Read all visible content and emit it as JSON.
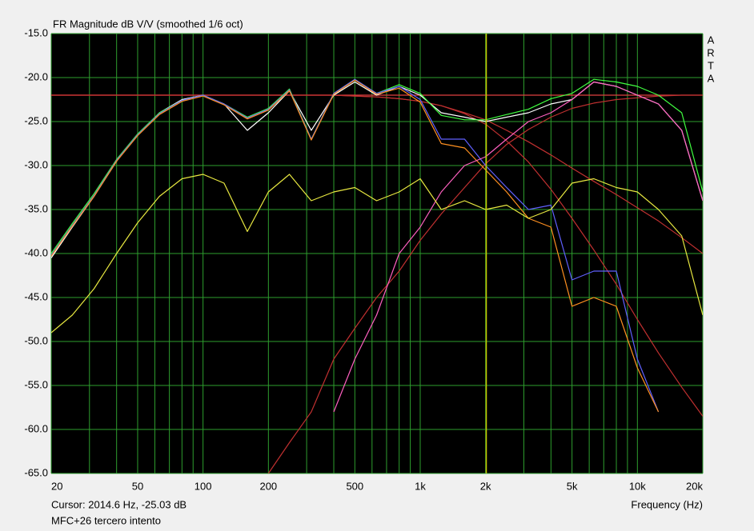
{
  "chart_data": {
    "type": "line",
    "title": "FR Magnitude dB V/V (smoothed 1/6 oct)",
    "side_label": [
      "A",
      "R",
      "T",
      "A"
    ],
    "cursor_text": "Cursor: 2014.6 Hz, -25.03 dB",
    "cursor_x": 2014.6,
    "cursor_color": "#c8c800",
    "x_label": "Frequency (Hz)",
    "footer": "MFC+26 tercero intento",
    "x_scale": "log",
    "grid": true,
    "xlim": [
      20,
      20000
    ],
    "ylim": [
      -65,
      -15
    ],
    "xticks": [
      20,
      50,
      100,
      200,
      500,
      {
        "value": 1000,
        "label": "1k"
      },
      {
        "value": 2000,
        "label": "2k"
      },
      {
        "value": 5000,
        "label": "5k"
      },
      {
        "value": 10000,
        "label": "10k"
      },
      {
        "value": 20000,
        "label": "20k"
      }
    ],
    "xminor": [
      30,
      40,
      60,
      70,
      80,
      90,
      300,
      400,
      600,
      700,
      800,
      900,
      3000,
      4000,
      6000,
      7000,
      8000,
      9000
    ],
    "yticks": [
      {
        "value": -15,
        "label": "-15.0"
      },
      {
        "value": -20,
        "label": "-20.0"
      },
      {
        "value": -25,
        "label": "-25.0"
      },
      {
        "value": -30,
        "label": "-30.0"
      },
      {
        "value": -35,
        "label": "-35.0"
      },
      {
        "value": -40,
        "label": "-40.0"
      },
      {
        "value": -45,
        "label": "-45.0"
      },
      {
        "value": -50,
        "label": "-50.0"
      },
      {
        "value": -55,
        "label": "-55.0"
      },
      {
        "value": -60,
        "label": "-60.0"
      },
      {
        "value": -65,
        "label": "-65.0"
      }
    ],
    "x": [
      20,
      25,
      31.5,
      40,
      50,
      63,
      80,
      100,
      125,
      160,
      200,
      250,
      315,
      400,
      500,
      630,
      800,
      1000,
      1250,
      1600,
      2000,
      2500,
      3150,
      4000,
      5000,
      6300,
      8000,
      10000,
      12500,
      16000,
      20000
    ],
    "series": [
      {
        "color": "#e04040",
        "values": [
          -22,
          -22,
          -22,
          -22,
          -22,
          -22,
          -22,
          -22,
          -22,
          -22,
          -22,
          -22,
          -22,
          -22,
          -22,
          -22,
          -22,
          -22,
          -22,
          -22,
          -22,
          -22,
          -22,
          -22,
          -22,
          -22,
          -22,
          -22,
          -22,
          -22,
          -22
        ]
      },
      {
        "color": "#c03030",
        "values": [
          -22,
          -22,
          -22,
          -22,
          -22,
          -22,
          -22,
          -22,
          -22,
          -22,
          -22,
          -22,
          -22,
          -22,
          -22.1,
          -22.2,
          -22.4,
          -22.7,
          -23.2,
          -24,
          -24.8,
          -26,
          -27.3,
          -28.8,
          -30.3,
          -31.8,
          -33.3,
          -34.8,
          -36.3,
          -38.2,
          -40
        ]
      },
      {
        "color": "#c03030",
        "values": [
          -22,
          -22,
          -22,
          -22,
          -22,
          -22,
          -22,
          -22,
          -22,
          -22,
          -22,
          -22,
          -22,
          -22,
          -22.1,
          -22.2,
          -22.4,
          -22.7,
          -23.2,
          -24.1,
          -25.3,
          -27.2,
          -29.6,
          -32.7,
          -36,
          -39.6,
          -43.5,
          -47.5,
          -51.3,
          -55.2,
          -58.5
        ]
      },
      {
        "color": "#c03030",
        "values": [
          null,
          null,
          null,
          null,
          null,
          null,
          null,
          null,
          null,
          null,
          -65,
          -61.5,
          -58,
          -52,
          -48.5,
          -45,
          -42,
          -38.5,
          -35.5,
          -32.5,
          -29.8,
          -27.6,
          -25.9,
          -24.5,
          -23.5,
          -22.9,
          -22.5,
          -22.3,
          -22.1,
          -22,
          -22
        ]
      },
      {
        "color": "#ffffff",
        "values": [
          -40.5,
          -37,
          -33.5,
          -29.5,
          -26.5,
          -24,
          -22.5,
          -22,
          -23,
          -26,
          -24,
          -21.5,
          -26,
          -22,
          -20.5,
          -22,
          -21,
          -22,
          -24,
          -24.5,
          -25,
          -24.5,
          -24,
          -23,
          -22.5,
          -20.5,
          -21,
          -22,
          -23,
          -26,
          -34
        ]
      },
      {
        "color": "#40ff40",
        "values": [
          -40,
          -36.6,
          -33.2,
          -29.3,
          -26.4,
          -24,
          -22.6,
          -22,
          -23,
          -24.5,
          -23.5,
          -21.3,
          -27,
          -21.8,
          -20.2,
          -21.8,
          -20.8,
          -21.8,
          -24.3,
          -24.8,
          -24.8,
          -24.2,
          -23.6,
          -22.4,
          -21.8,
          -20.2,
          -20.5,
          -21,
          -22,
          -24,
          -33
        ]
      },
      {
        "color": "#6060ff",
        "values": [
          -40.2,
          -36.8,
          -33.4,
          -29.4,
          -26.5,
          -24.1,
          -22.6,
          -22,
          -23,
          -24.6,
          -23.6,
          -21.4,
          -27,
          -21.8,
          -20.2,
          -21.8,
          -21,
          -22.5,
          -27,
          -27,
          -30,
          -32.5,
          -35,
          -34.5,
          -43,
          -42,
          -42,
          -52,
          -58,
          null,
          null
        ]
      },
      {
        "color": "#ff9020",
        "values": [
          -40.3,
          -36.9,
          -33.5,
          -29.5,
          -26.6,
          -24.2,
          -22.7,
          -22.1,
          -23.1,
          -24.7,
          -23.7,
          -21.5,
          -27.1,
          -21.9,
          -20.3,
          -21.9,
          -21.2,
          -22.8,
          -27.5,
          -28,
          -30.5,
          -33,
          -36,
          -37,
          -46,
          -45,
          -46,
          -53,
          -58,
          null,
          null
        ]
      },
      {
        "color": "#ff60c0",
        "values": [
          null,
          null,
          null,
          null,
          null,
          null,
          null,
          null,
          null,
          null,
          null,
          null,
          null,
          -58,
          -52,
          -47,
          -40,
          -37,
          -33,
          -30,
          -29,
          -27,
          -25,
          -24,
          -22.5,
          -20.5,
          -21,
          -22,
          -23,
          -26,
          -34
        ]
      },
      {
        "color": "#e8e840",
        "values": [
          -49,
          -47,
          -44,
          -40,
          -36.5,
          -33.5,
          -31.5,
          -31,
          -32,
          -37.5,
          -33,
          -31,
          -34,
          -33,
          -32.5,
          -34,
          -33,
          -31.5,
          -35,
          -34,
          -35,
          -34.5,
          -36,
          -35,
          -32,
          -31.5,
          -32.5,
          -33,
          -35,
          -38,
          -47
        ]
      }
    ]
  }
}
